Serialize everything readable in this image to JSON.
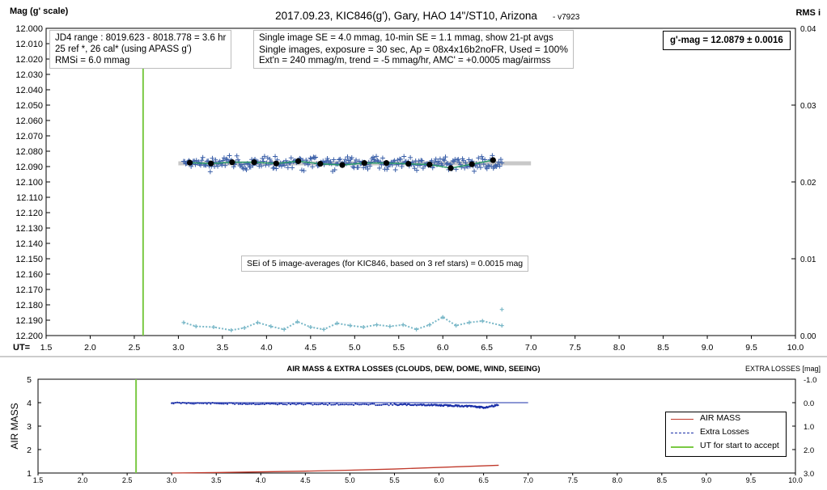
{
  "header": {
    "title": "2017.09.23,  KIC846(g'),  Gary, HAO 14\"/ST10, Arizona",
    "version": "- v7923",
    "ylabel_left": "Mag (g' scale)",
    "ylabel_right": "RMS i",
    "xaxis_prefix": "UT="
  },
  "annotations": {
    "jd_box": [
      "JD4 range : 8019.623 - 8018.778 =  3.6  hr",
      "25 ref *, 26 cal* (using APASS g')",
      "RMSi = 6.0 mmag"
    ],
    "se_box": [
      "Single image SE = 4.0 mmag, 10-min SE = 1.1 mmag, show 21-pt avgs",
      "Single images, exposure = 30 sec, Ap = 08x4x16b2noFR, Used = 100%",
      "Ext'n = 240 mmag/m, trend =  -5 mmag/hr, AMC' = +0.0005 mag/airmss"
    ],
    "result": "g'-mag = 12.0879 ± 0.0016",
    "sei": "SEi of 5 image-averages (for KIC846, based on 3 ref stars) = 0.0015 mag"
  },
  "chart_data": [
    {
      "type": "scatter",
      "title": "2017.09.23,  KIC846(g'),  Gary, HAO 14\"/ST10, Arizona",
      "ylabel": "Mag (g' scale)",
      "y2label": "RMS i",
      "xlim": [
        1.5,
        10.0
      ],
      "ylim": [
        12.2,
        12.0
      ],
      "y2lim": [
        0.0,
        0.04
      ],
      "xticks": [
        "1.5",
        "2.0",
        "2.5",
        "3.0",
        "3.5",
        "4.0",
        "4.5",
        "5.0",
        "5.5",
        "6.0",
        "6.5",
        "7.0",
        "7.5",
        "8.0",
        "8.5",
        "9.0",
        "9.5",
        "10.0"
      ],
      "yticks": [
        "12.000",
        "12.010",
        "12.020",
        "12.030",
        "12.040",
        "12.050",
        "12.060",
        "12.070",
        "12.080",
        "12.090",
        "12.100",
        "12.110",
        "12.120",
        "12.130",
        "12.140",
        "12.150",
        "12.160",
        "12.170",
        "12.180",
        "12.190",
        "12.200"
      ],
      "y2ticks": [
        "0.04",
        "0.03",
        "0.02",
        "0.01",
        "0.00"
      ],
      "ut_start_accept": 2.6,
      "mean_mag": 12.0879,
      "mean_line_x": [
        3.0,
        7.0
      ],
      "single_images": {
        "x_range": [
          3.06,
          6.67
        ],
        "mag_center": 12.088,
        "mag_scatter": 0.004,
        "color": "#3a5fa8"
      },
      "averages": {
        "name": "21-pt avgs",
        "color": "#000000",
        "x": [
          3.13,
          3.37,
          3.61,
          3.86,
          4.11,
          4.36,
          4.61,
          4.86,
          5.11,
          5.36,
          5.61,
          5.85,
          6.09,
          6.33,
          6.57
        ],
        "y": [
          12.0875,
          12.088,
          12.0872,
          12.0872,
          12.088,
          12.0865,
          12.0882,
          12.089,
          12.0877,
          12.0877,
          12.0882,
          12.0887,
          12.091,
          12.0885,
          12.0858
        ]
      },
      "trend_color": "#2a9a6a",
      "rms": {
        "name": "RMS i",
        "color": "#7ab8c8",
        "x": [
          3.06,
          3.2,
          3.4,
          3.6,
          3.75,
          3.9,
          4.05,
          4.2,
          4.35,
          4.5,
          4.65,
          4.8,
          4.95,
          5.1,
          5.25,
          5.4,
          5.55,
          5.7,
          5.85,
          6.0,
          6.15,
          6.3,
          6.45,
          6.67
        ],
        "y": [
          0.0017,
          0.0012,
          0.0011,
          0.0007,
          0.001,
          0.0017,
          0.0012,
          0.0008,
          0.0018,
          0.0011,
          0.0008,
          0.0016,
          0.0013,
          0.0011,
          0.0014,
          0.0012,
          0.0014,
          0.0008,
          0.0014,
          0.0024,
          0.0013,
          0.0017,
          0.0019,
          0.0013
        ],
        "outlier": {
          "x": 6.67,
          "y": 0.0034
        }
      }
    },
    {
      "type": "line",
      "title": "AIR MASS & EXTRA LOSSES (CLOUDS, DEW, DOME, WIND, SEEING)",
      "ylabel": "AIR MASS",
      "y2label": "EXTRA LOSSES [mag]",
      "xlim": [
        1.5,
        10.0
      ],
      "ylim": [
        1,
        5
      ],
      "y2lim": [
        3.0,
        -1.0
      ],
      "xticks": [
        "1.5",
        "2.0",
        "2.5",
        "3.0",
        "3.5",
        "4.0",
        "4.5",
        "5.0",
        "5.5",
        "6.0",
        "6.5",
        "7.0",
        "7.5",
        "8.0",
        "8.5",
        "9.0",
        "9.5",
        "10.0"
      ],
      "yticks": [
        "1",
        "2",
        "3",
        "4",
        "5"
      ],
      "y2ticks": [
        "-1.0",
        "0.0",
        "1.0",
        "2.0",
        "3.0"
      ],
      "series": [
        {
          "name": "AIR MASS",
          "color": "#c0392b",
          "x": [
            3.0,
            3.5,
            4.0,
            4.5,
            5.0,
            5.5,
            6.0,
            6.67
          ],
          "y": [
            1.0,
            1.02,
            1.05,
            1.08,
            1.12,
            1.17,
            1.24,
            1.33
          ]
        },
        {
          "name": "Extra Losses",
          "color": "#1a2fa8",
          "x": [
            3.0,
            3.5,
            4.0,
            4.5,
            5.0,
            5.5,
            5.8,
            6.0,
            6.2,
            6.4,
            6.5,
            6.67
          ],
          "y": [
            0.0,
            0.02,
            0.04,
            0.05,
            0.06,
            0.07,
            0.08,
            0.1,
            0.12,
            0.15,
            0.2,
            0.08
          ]
        },
        {
          "name": "UT for start to accept",
          "color": "#7ac943",
          "x": [
            2.6
          ],
          "y": [
            0
          ]
        }
      ],
      "baseline_x": [
        3.0,
        7.0
      ]
    }
  ]
}
